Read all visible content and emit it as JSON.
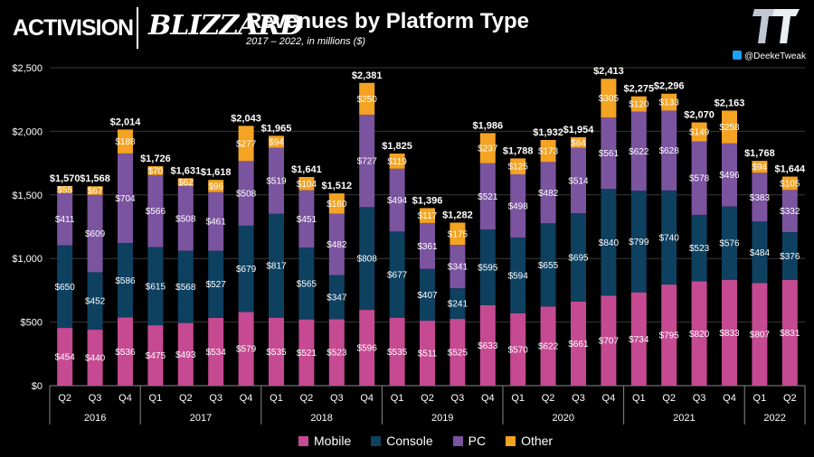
{
  "header": {
    "logo_activision": "ACTIVISION",
    "logo_blizzard": "BLIZZARD",
    "title": "Revenues by Platform Type",
    "subtitle": "2017 – 2022, in millions ($)",
    "credit": "@DeekeTweak"
  },
  "legend": [
    {
      "label": "Mobile",
      "color": "#c54a92"
    },
    {
      "label": "Console",
      "color": "#0e4060"
    },
    {
      "label": "PC",
      "color": "#7b54a0"
    },
    {
      "label": "Other",
      "color": "#f4a322"
    }
  ],
  "chart_data": {
    "type": "bar",
    "stacked": true,
    "ylim": [
      0,
      2500
    ],
    "yticks": [
      "$0",
      "$500",
      "$1,000",
      "$1,500",
      "$2,000",
      "$2,500"
    ],
    "categories": [
      "Q2",
      "Q3",
      "Q4",
      "Q1",
      "Q2",
      "Q3",
      "Q4",
      "Q1",
      "Q2",
      "Q3",
      "Q4",
      "Q1",
      "Q2",
      "Q3",
      "Q4",
      "Q1",
      "Q2",
      "Q3",
      "Q4",
      "Q1",
      "Q2",
      "Q3",
      "Q4",
      "Q1",
      "Q2"
    ],
    "years": [
      {
        "label": "2016",
        "count": 3
      },
      {
        "label": "2017",
        "count": 4
      },
      {
        "label": "2018",
        "count": 4
      },
      {
        "label": "2019",
        "count": 4
      },
      {
        "label": "2020",
        "count": 4
      },
      {
        "label": "2021",
        "count": 4
      },
      {
        "label": "2022",
        "count": 2
      }
    ],
    "totals": [
      "$1,570",
      "$1,568",
      "$2,014",
      "$1,726",
      "$1,631",
      "$1,618",
      "$2,043",
      "$1,965",
      "$1,641",
      "$1,512",
      "$2,381",
      "$1,825",
      "$1,396",
      "$1,282",
      "$1,986",
      "$1,788",
      "$1,932",
      "$1,954",
      "$2,413",
      "$2,275",
      "$2,296",
      "$2,070",
      "$2,163",
      "$1,768",
      "$1,644"
    ],
    "series": [
      {
        "name": "Mobile",
        "color": "#c54a92",
        "values": [
          454,
          440,
          536,
          475,
          493,
          534,
          579,
          535,
          521,
          523,
          596,
          535,
          511,
          525,
          633,
          570,
          622,
          661,
          707,
          734,
          795,
          820,
          833,
          807,
          831
        ]
      },
      {
        "name": "Console",
        "color": "#0e4060",
        "values": [
          650,
          452,
          586,
          615,
          568,
          527,
          679,
          817,
          565,
          347,
          808,
          677,
          407,
          241,
          595,
          594,
          655,
          695,
          840,
          799,
          740,
          523,
          576,
          484,
          376
        ]
      },
      {
        "name": "PC",
        "color": "#7b54a0",
        "values": [
          411,
          609,
          704,
          566,
          508,
          461,
          508,
          519,
          451,
          482,
          727,
          494,
          361,
          341,
          521,
          498,
          482,
          514,
          561,
          622,
          628,
          578,
          496,
          383,
          332
        ]
      },
      {
        "name": "Other",
        "color": "#f4a322",
        "values": [
          55,
          67,
          188,
          70,
          62,
          96,
          277,
          94,
          104,
          160,
          250,
          119,
          117,
          175,
          237,
          125,
          173,
          84,
          305,
          120,
          133,
          149,
          258,
          94,
          105
        ]
      }
    ]
  }
}
